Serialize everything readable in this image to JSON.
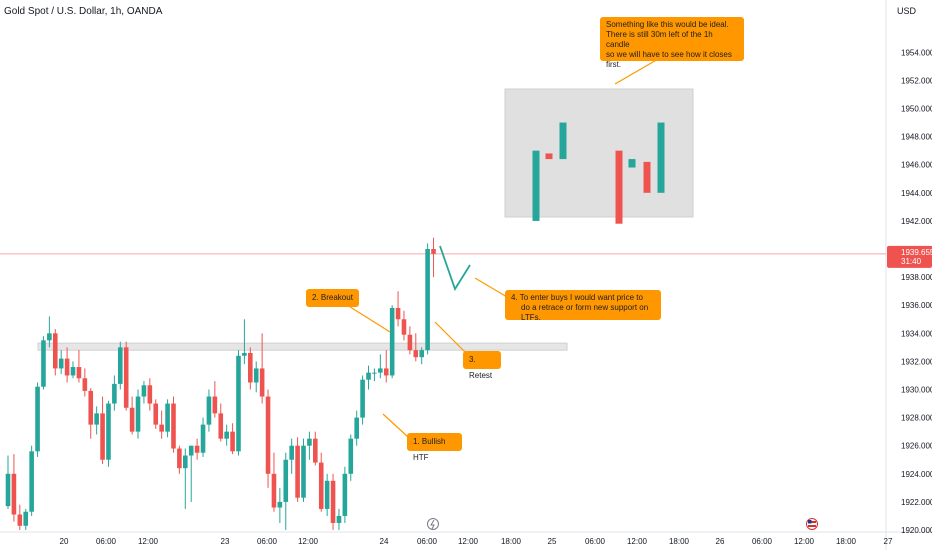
{
  "chart_title": "Gold Spot / U.S. Dollar, 1h, OANDA",
  "currency": "USD",
  "price_label": {
    "value": "1939.655",
    "countdown": "31:40"
  },
  "callouts": {
    "ideal": [
      "Something like this would be ideal.",
      "There is still 30m left of the 1h candle",
      "so we will have to see how it closes first."
    ],
    "breakout": "2. Breakout",
    "retest": "3. Retest",
    "bullish": "1. Bullish HTF",
    "enter": [
      "4. To enter buys I would want price to",
      "do a retrace or form new support on LTFs."
    ]
  },
  "colors": {
    "up": "#26a69a",
    "down": "#ef5350",
    "callout": "#ff9800",
    "zone": "#e0e0e0",
    "price_line": "#f7a8a8"
  },
  "chart_data": {
    "type": "candlestick",
    "title": "Gold Spot / U.S. Dollar, 1h, OANDA",
    "y_axis_unit": "USD",
    "ylim": [
      1920,
      1955
    ],
    "y_ticks": [
      1920,
      1922,
      1924,
      1926,
      1928,
      1930,
      1932,
      1934,
      1936,
      1938,
      1940,
      1942,
      1944,
      1946,
      1948,
      1950,
      1952,
      1954
    ],
    "x_tick_labels": [
      "20",
      "06:00",
      "12:00",
      "23",
      "06:00",
      "12:00",
      "24",
      "06:00",
      "12:00",
      "18:00",
      "25",
      "06:00",
      "12:00",
      "18:00",
      "26",
      "06:00",
      "12:00",
      "18:00",
      "27"
    ],
    "support_zone": [
      1932.8,
      1933.3
    ],
    "last_price": 1939.655,
    "candles": [
      [
        1921.7,
        1925.3,
        1921.5,
        1924.0
      ],
      [
        1924.0,
        1925.4,
        1920.6,
        1921.1
      ],
      [
        1921.1,
        1921.8,
        1920.0,
        1920.3
      ],
      [
        1920.3,
        1921.5,
        1920.0,
        1921.3
      ],
      [
        1921.3,
        1926.0,
        1921.0,
        1925.6
      ],
      [
        1925.6,
        1930.5,
        1925.2,
        1930.2
      ],
      [
        1930.2,
        1933.8,
        1930.0,
        1933.5
      ],
      [
        1933.5,
        1935.2,
        1933.0,
        1934.0
      ],
      [
        1934.0,
        1934.3,
        1931.0,
        1931.5
      ],
      [
        1931.5,
        1932.8,
        1931.1,
        1932.2
      ],
      [
        1932.2,
        1933.0,
        1930.5,
        1931.0
      ],
      [
        1931.0,
        1932.0,
        1930.8,
        1931.6
      ],
      [
        1931.6,
        1932.8,
        1930.5,
        1930.8
      ],
      [
        1930.8,
        1931.5,
        1929.5,
        1929.9
      ],
      [
        1929.9,
        1930.1,
        1926.5,
        1927.5
      ],
      [
        1927.5,
        1928.8,
        1926.8,
        1928.3
      ],
      [
        1928.3,
        1929.5,
        1924.7,
        1925.0
      ],
      [
        1925.0,
        1929.2,
        1924.5,
        1929.0
      ],
      [
        1929.0,
        1931.0,
        1928.5,
        1930.4
      ],
      [
        1930.4,
        1933.4,
        1930.0,
        1933.0
      ],
      [
        1933.0,
        1933.4,
        1928.5,
        1928.7
      ],
      [
        1928.7,
        1929.5,
        1926.8,
        1927.0
      ],
      [
        1927.0,
        1930.0,
        1926.5,
        1929.5
      ],
      [
        1929.5,
        1930.6,
        1929.0,
        1930.3
      ],
      [
        1930.3,
        1930.8,
        1928.5,
        1929.0
      ],
      [
        1929.0,
        1929.3,
        1927.2,
        1927.5
      ],
      [
        1927.5,
        1928.5,
        1926.5,
        1927.0
      ],
      [
        1927.0,
        1929.3,
        1926.6,
        1929.0
      ],
      [
        1929.0,
        1929.5,
        1925.5,
        1925.8
      ],
      [
        1925.8,
        1926.0,
        1924.0,
        1924.4
      ],
      [
        1924.4,
        1925.8,
        1921.5,
        1925.3
      ],
      [
        1925.3,
        1926.0,
        1922.0,
        1926.0
      ],
      [
        1926.0,
        1926.5,
        1925.0,
        1925.5
      ],
      [
        1925.5,
        1928.0,
        1925.2,
        1927.5
      ],
      [
        1927.5,
        1930.0,
        1927.0,
        1929.5
      ],
      [
        1929.5,
        1930.6,
        1928.0,
        1928.3
      ],
      [
        1928.3,
        1929.0,
        1926.3,
        1926.5
      ],
      [
        1926.5,
        1927.5,
        1926.0,
        1927.0
      ],
      [
        1927.0,
        1927.6,
        1925.4,
        1925.6
      ],
      [
        1925.6,
        1932.8,
        1925.3,
        1932.4
      ],
      [
        1932.4,
        1935.0,
        1931.8,
        1932.6
      ],
      [
        1932.6,
        1933.0,
        1930.0,
        1930.5
      ],
      [
        1930.5,
        1932.0,
        1929.8,
        1931.5
      ],
      [
        1931.5,
        1934.0,
        1929.0,
        1929.5
      ],
      [
        1929.5,
        1930.0,
        1923.0,
        1924.0
      ],
      [
        1924.0,
        1925.5,
        1921.3,
        1921.6
      ],
      [
        1921.6,
        1923.0,
        1920.5,
        1922.0
      ],
      [
        1922.0,
        1925.5,
        1920.0,
        1925.0
      ],
      [
        1925.0,
        1926.5,
        1924.0,
        1926.0
      ],
      [
        1926.0,
        1926.6,
        1922.0,
        1922.3
      ],
      [
        1922.3,
        1926.5,
        1922.0,
        1926.0
      ],
      [
        1926.0,
        1927.0,
        1925.0,
        1926.5
      ],
      [
        1926.5,
        1927.0,
        1924.6,
        1924.8
      ],
      [
        1924.8,
        1925.5,
        1921.3,
        1921.5
      ],
      [
        1921.5,
        1924.0,
        1921.0,
        1923.5
      ],
      [
        1923.5,
        1924.0,
        1920.0,
        1920.5
      ],
      [
        1920.5,
        1921.5,
        1920.0,
        1921.0
      ],
      [
        1921.0,
        1924.5,
        1920.5,
        1924.0
      ],
      [
        1924.0,
        1926.8,
        1923.5,
        1926.5
      ],
      [
        1926.5,
        1928.5,
        1926.0,
        1928.0
      ],
      [
        1928.0,
        1931.0,
        1927.5,
        1930.7
      ],
      [
        1930.7,
        1931.7,
        1930.0,
        1931.2
      ],
      [
        1931.2,
        1931.5,
        1930.6,
        1931.2
      ],
      [
        1931.2,
        1932.5,
        1930.8,
        1931.5
      ],
      [
        1931.5,
        1932.8,
        1930.5,
        1931.0
      ],
      [
        1931.0,
        1936.0,
        1930.8,
        1935.8
      ],
      [
        1935.8,
        1937.0,
        1934.5,
        1935.0
      ],
      [
        1935.0,
        1935.6,
        1933.5,
        1933.9
      ],
      [
        1933.9,
        1934.5,
        1932.5,
        1932.8
      ],
      [
        1932.8,
        1934.0,
        1932.0,
        1932.3
      ],
      [
        1932.3,
        1933.0,
        1931.8,
        1932.8
      ],
      [
        1932.8,
        1940.4,
        1932.5,
        1940.0
      ],
      [
        1940.0,
        1940.8,
        1938.0,
        1939.655
      ]
    ],
    "idea_candles": [
      [
        1942.0,
        1947.5,
        1942.0,
        1947.0
      ],
      [
        1946.8,
        1946.8,
        1946.4,
        1946.4
      ],
      [
        1946.4,
        1949.0,
        1946.4,
        1949.0
      ],
      [
        1947.0,
        1947.0,
        1941.8,
        1941.8
      ],
      [
        1945.8,
        1946.4,
        1945.8,
        1946.4
      ],
      [
        1946.2,
        1946.2,
        1944.0,
        1944.0
      ],
      [
        1944.0,
        1949.0,
        1944.0,
        1949.0
      ]
    ]
  }
}
